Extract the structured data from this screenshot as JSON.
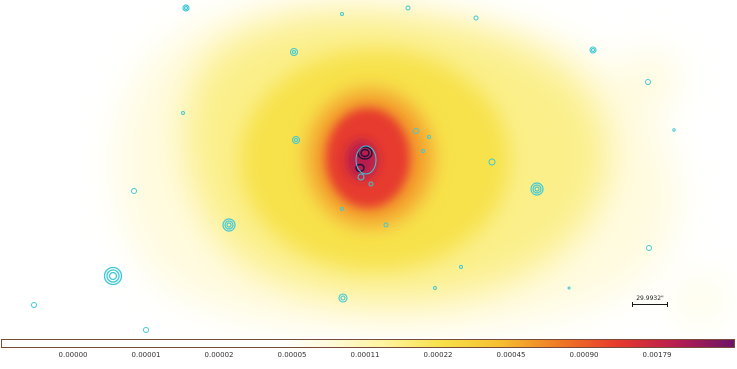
{
  "viewer": {
    "image_name": "x-ray-cluster-image",
    "colormap": "heat"
  },
  "colorbar": {
    "tick_labels": [
      "0.00000",
      "0.00001",
      "0.00002",
      "0.00005",
      "0.00011",
      "0.00022",
      "0.00045",
      "0.00090",
      "0.00179"
    ]
  },
  "scale_bar": {
    "label": "29.9932\""
  },
  "colors": {
    "contour_cyan": "#3ec8d6",
    "contour_dark": "#1e1040",
    "cluster_core": "#e63a2e",
    "cluster_halo": "#f7e14a"
  }
}
